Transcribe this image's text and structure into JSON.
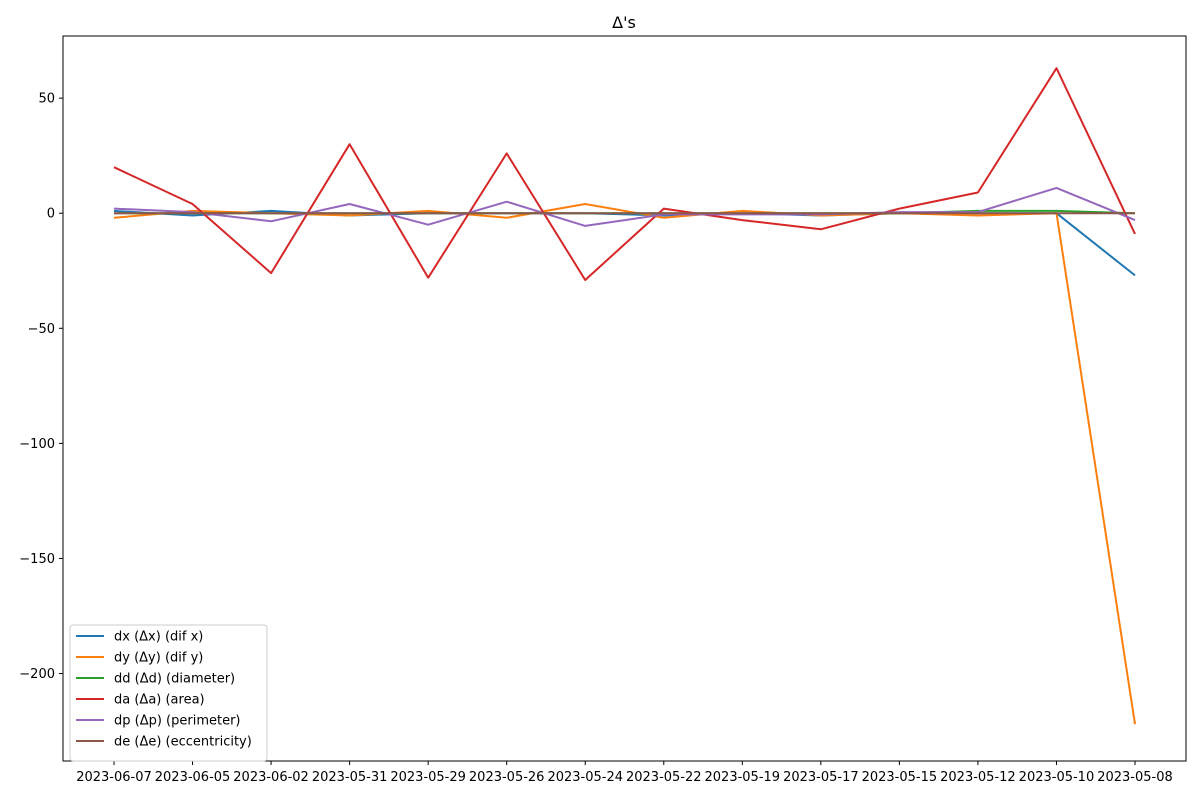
{
  "chart_data": {
    "type": "line",
    "title": "Δ's",
    "xlabel": "",
    "ylabel": "",
    "categories": [
      "2023-06-07",
      "2023-06-05",
      "2023-06-02",
      "2023-05-31",
      "2023-05-29",
      "2023-05-26",
      "2023-05-24",
      "2023-05-22",
      "2023-05-19",
      "2023-05-17",
      "2023-05-15",
      "2023-05-12",
      "2023-05-10",
      "2023-05-08"
    ],
    "ylim": [
      -238,
      77
    ],
    "yticks": [
      50,
      0,
      -50,
      -100,
      -150,
      -200
    ],
    "ytick_labels": [
      "50",
      "0",
      "−50",
      "−100",
      "−150",
      "−200"
    ],
    "grid": false,
    "legend_position": "lower-left",
    "series": [
      {
        "name": "dx (Δx) (dif x)",
        "color": "#1f77b4",
        "values": [
          1,
          -1,
          1,
          -1,
          0,
          0,
          0,
          -1,
          0,
          -1,
          0,
          0,
          0,
          -27
        ]
      },
      {
        "name": "dy (Δy) (dif y)",
        "color": "#ff7f0e",
        "values": [
          -2,
          1,
          0,
          -1,
          1,
          -2,
          4,
          -2,
          1,
          -1,
          0,
          -1,
          0,
          -222
        ]
      },
      {
        "name": "dd (Δd) (diameter)",
        "color": "#2ca02c",
        "values": [
          0,
          0,
          0,
          0,
          0,
          0,
          0,
          0,
          0,
          0,
          0,
          1,
          1,
          0
        ]
      },
      {
        "name": "da (Δa) (area)",
        "color": "#d62728",
        "values": [
          20,
          4,
          -26,
          30,
          -28,
          26,
          -29,
          2,
          -3,
          -7,
          2,
          9,
          63,
          -9
        ]
      },
      {
        "name": "dp (Δp) (perimeter)",
        "color": "#9467bd",
        "values": [
          2,
          0.5,
          -3.5,
          4,
          -5,
          5,
          -5.5,
          -0.5,
          -0.5,
          -0.5,
          0.5,
          0.5,
          11,
          -3
        ]
      },
      {
        "name": "de (Δe) (eccentricity)",
        "color": "#8c564b",
        "values": [
          0,
          0,
          0,
          0,
          0,
          0,
          0,
          0,
          0,
          0,
          0,
          0,
          0,
          0
        ]
      }
    ]
  }
}
